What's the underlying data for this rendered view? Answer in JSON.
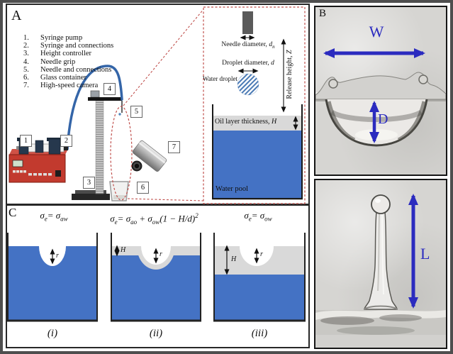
{
  "panels": {
    "a": {
      "label": "A",
      "legend": [
        {
          "num": "1.",
          "label": "Syringe pump"
        },
        {
          "num": "2.",
          "label": "Syringe and connections"
        },
        {
          "num": "3.",
          "label": "Height controller"
        },
        {
          "num": "4.",
          "label": "Needle grip"
        },
        {
          "num": "5.",
          "label": "Needle and connections"
        },
        {
          "num": "6.",
          "label": "Glass container"
        },
        {
          "num": "7.",
          "label": "High-speed camera"
        }
      ],
      "callouts": [
        "1",
        "2",
        "3",
        "4",
        "5",
        "6",
        "7"
      ],
      "inset": {
        "needle_diameter": [
          {
            "t": "Needle diameter, "
          },
          {
            "t": "d",
            "i": true
          },
          {
            "sub": "n"
          }
        ],
        "droplet_diameter": [
          {
            "t": "Droplet diameter, "
          },
          {
            "t": "d",
            "i": true
          }
        ],
        "water_droplet": "Water droplet",
        "release_height": [
          {
            "t": "Release height, "
          },
          {
            "t": "Z",
            "i": true
          }
        ],
        "oil_layer": [
          {
            "t": "Oil layer thickness, "
          },
          {
            "t": "H",
            "i": true
          }
        ],
        "water_pool": "Water pool"
      }
    },
    "b": {
      "label": "B",
      "width_label": "W",
      "depth_label": "D",
      "length_label": "L"
    },
    "c": {
      "label": "C",
      "equations": [
        {
          "segments": [
            {
              "t": "σ"
            },
            {
              "sub": "e"
            },
            {
              "t": "= σ"
            },
            {
              "sub": "aw"
            }
          ]
        },
        {
          "segments": [
            {
              "t": "σ"
            },
            {
              "sub": "e"
            },
            {
              "t": "= σ"
            },
            {
              "sub": "ao"
            },
            {
              "t": " + σ"
            },
            {
              "sub": "ow"
            },
            {
              "t": "(1 − H/d)"
            },
            {
              "sup": "2"
            }
          ]
        },
        {
          "segments": [
            {
              "t": "σ"
            },
            {
              "sub": "e"
            },
            {
              "t": "= σ"
            },
            {
              "sub": "ow"
            }
          ]
        }
      ],
      "diagrams": [
        {
          "caption": "(i)",
          "r_label": "r"
        },
        {
          "caption": "(ii)",
          "r_label": "r",
          "h_label": "H"
        },
        {
          "caption": "(iii)",
          "r_label": "r",
          "h_label": "H"
        }
      ]
    }
  },
  "colors": {
    "water_blue": "#4472c4",
    "oil_gray": "#d9d9d9",
    "needle_gray": "#5a5a5a",
    "callout_red": "#c0504d",
    "annotation_blue": "#2b2bbf",
    "tube_blue": "#3465a8",
    "pump_red": "#c23a2e"
  }
}
